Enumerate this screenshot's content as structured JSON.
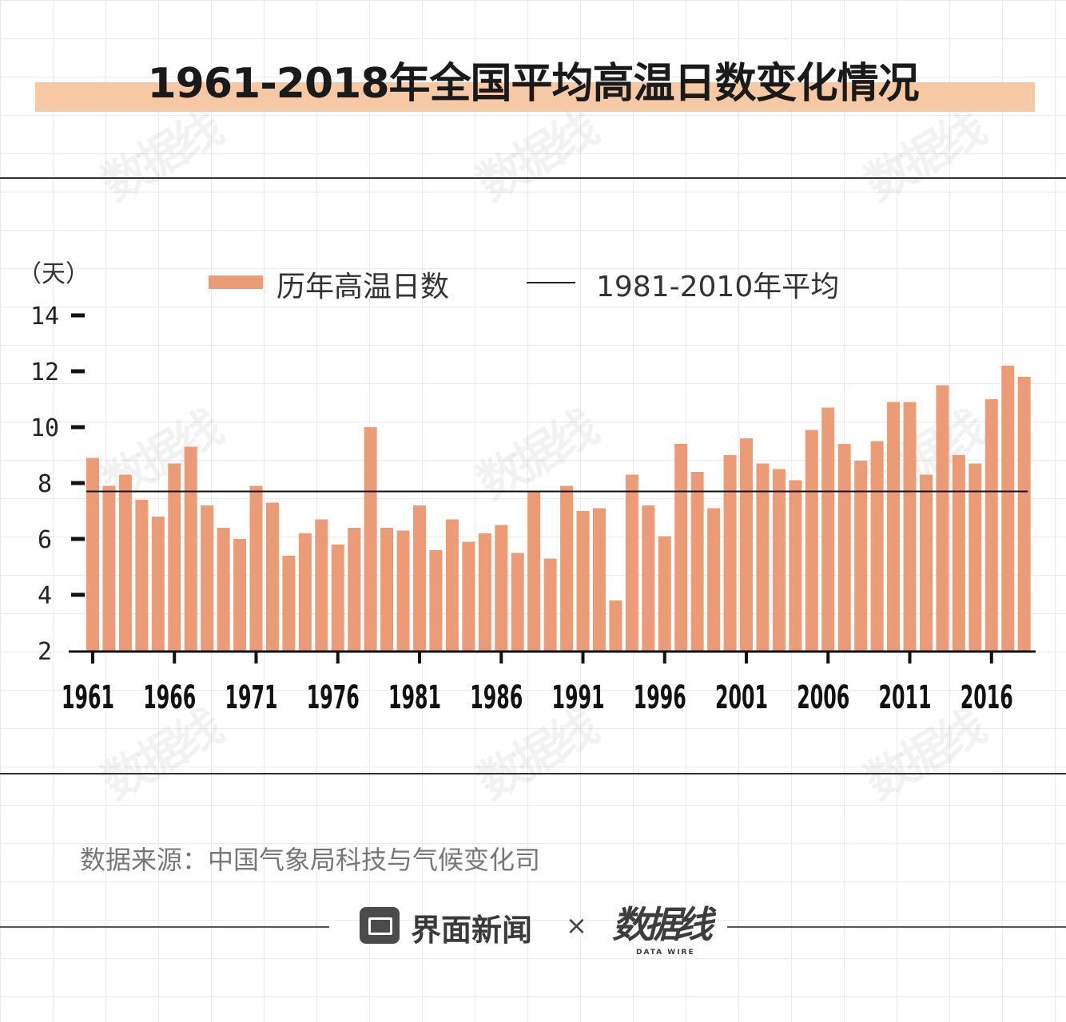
{
  "title": "1961-2018年全国平均高温日数变化情况",
  "unit_label": "（天）",
  "legend": {
    "bar_label": "历年高温日数",
    "line_label": "1981-2010年平均"
  },
  "source": "数据来源：中国气象局科技与气候变化司",
  "footer": {
    "brand": "界面新闻",
    "separator": "×",
    "partner": "数据线",
    "partner_sub": "DATA WIRE"
  },
  "watermark": "数据线",
  "colors": {
    "bar": "#eb9c76",
    "title_band": "#f6c9a4",
    "axis": "#111111"
  },
  "chart_data": {
    "type": "bar",
    "title": "1961-2018年全国平均高温日数变化情况",
    "ylabel": "（天）",
    "ylim": [
      2,
      14
    ],
    "yticks": [
      2,
      4,
      6,
      8,
      10,
      12,
      14
    ],
    "xtick_labels": [
      "1961",
      "1966",
      "1971",
      "1976",
      "1981",
      "1986",
      "1991",
      "1996",
      "2001",
      "2006",
      "2011",
      "2016"
    ],
    "categories": [
      "1961",
      "1962",
      "1963",
      "1964",
      "1965",
      "1966",
      "1967",
      "1968",
      "1969",
      "1970",
      "1971",
      "1972",
      "1973",
      "1974",
      "1975",
      "1976",
      "1977",
      "1978",
      "1979",
      "1980",
      "1981",
      "1982",
      "1983",
      "1984",
      "1985",
      "1986",
      "1987",
      "1988",
      "1989",
      "1990",
      "1991",
      "1992",
      "1993",
      "1994",
      "1995",
      "1996",
      "1997",
      "1998",
      "1999",
      "2000",
      "2001",
      "2002",
      "2003",
      "2004",
      "2005",
      "2006",
      "2007",
      "2008",
      "2009",
      "2010",
      "2011",
      "2012",
      "2013",
      "2014",
      "2015",
      "2016",
      "2017",
      "2018"
    ],
    "series": [
      {
        "name": "历年高温日数",
        "values": [
          8.9,
          7.9,
          8.3,
          7.4,
          6.8,
          8.7,
          9.3,
          7.2,
          6.4,
          6.0,
          7.9,
          7.3,
          5.4,
          6.2,
          6.7,
          5.8,
          6.4,
          10.0,
          6.4,
          6.3,
          7.2,
          5.6,
          6.7,
          5.9,
          6.2,
          6.5,
          5.5,
          7.7,
          5.3,
          7.9,
          7.0,
          7.1,
          3.8,
          8.3,
          7.2,
          6.1,
          9.4,
          8.4,
          7.1,
          9.0,
          9.6,
          8.7,
          8.5,
          8.1,
          9.9,
          10.7,
          9.4,
          8.8,
          9.5,
          10.9,
          10.9,
          8.3,
          11.5,
          9.0,
          8.7,
          11.0,
          12.2,
          11.8
        ]
      }
    ],
    "reference_line": {
      "name": "1981-2010年平均",
      "value": 7.7
    },
    "grid": false,
    "legend_position": "top"
  }
}
